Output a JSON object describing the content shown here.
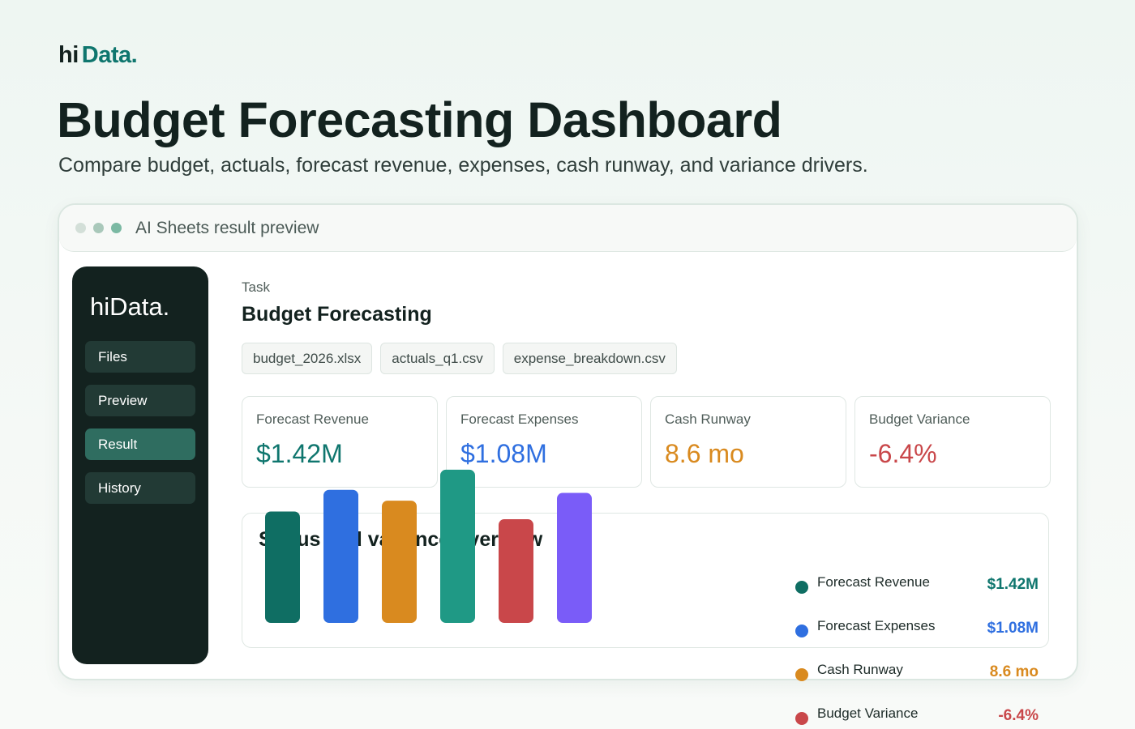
{
  "brand": {
    "hi": "hi",
    "data": "Data."
  },
  "page": {
    "title": "Budget Forecasting Dashboard",
    "subtitle": "Compare budget, actuals, forecast revenue, expenses, cash runway, and variance drivers."
  },
  "window": {
    "title": "AI Sheets result preview"
  },
  "sidebar": {
    "logo": "hiData.",
    "items": [
      {
        "label": "Files",
        "active": false
      },
      {
        "label": "Preview",
        "active": false
      },
      {
        "label": "Result",
        "active": true
      },
      {
        "label": "History",
        "active": false
      }
    ]
  },
  "task": {
    "label": "Task",
    "title": "Budget Forecasting",
    "files": [
      "budget_2026.xlsx",
      "actuals_q1.csv",
      "expense_breakdown.csv"
    ]
  },
  "metrics": [
    {
      "label": "Forecast Revenue",
      "value": "$1.42M",
      "color": "#0f766e"
    },
    {
      "label": "Forecast Expenses",
      "value": "$1.08M",
      "color": "#2f6fe0"
    },
    {
      "label": "Cash Runway",
      "value": "8.6 mo",
      "color": "#d98a1f"
    },
    {
      "label": "Budget Variance",
      "value": "-6.4%",
      "color": "#c9474a"
    }
  ],
  "chart_data": {
    "type": "bar",
    "title": "Status and variance overview",
    "values": [
      0.72,
      0.86,
      0.79,
      0.99,
      0.67,
      0.84
    ],
    "colors": [
      "#0f6e63",
      "#2f6fe0",
      "#d98a1f",
      "#1f9985",
      "#c9474a",
      "#7a5cf8"
    ],
    "legend": [
      {
        "label": "Forecast Revenue",
        "value": "$1.42M",
        "color": "#0f6e63"
      },
      {
        "label": "Forecast Expenses",
        "value": "$1.08M",
        "color": "#2f6fe0"
      },
      {
        "label": "Cash Runway",
        "value": "8.6 mo",
        "color": "#d98a1f"
      },
      {
        "label": "Budget Variance",
        "value": "-6.4%",
        "color": "#c9474a"
      }
    ]
  }
}
